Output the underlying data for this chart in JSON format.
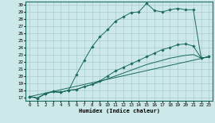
{
  "xlabel": "Humidex (Indice chaleur)",
  "bg_color": "#cce8e8",
  "line_color": "#1a6b5a",
  "grid_color": "#aacccc",
  "xlim": [
    -0.5,
    23.5
  ],
  "ylim": [
    16.5,
    30.5
  ],
  "yticks": [
    17,
    18,
    19,
    20,
    21,
    22,
    23,
    24,
    25,
    26,
    27,
    28,
    29,
    30
  ],
  "xticks": [
    0,
    1,
    2,
    3,
    4,
    5,
    6,
    7,
    8,
    9,
    10,
    11,
    12,
    13,
    14,
    15,
    16,
    17,
    18,
    19,
    20,
    21,
    22,
    23
  ],
  "series_marked1_x": [
    0,
    1,
    2,
    3,
    4,
    5,
    6,
    7,
    8,
    9,
    10,
    11,
    12,
    13,
    14,
    15,
    16,
    17,
    18,
    19,
    20,
    21,
    22,
    23
  ],
  "series_marked1_y": [
    17.1,
    16.9,
    17.5,
    17.8,
    17.7,
    18.0,
    20.2,
    22.2,
    24.1,
    25.5,
    26.5,
    27.7,
    28.3,
    28.9,
    29.0,
    30.2,
    29.2,
    29.0,
    29.3,
    29.5,
    29.3,
    29.3,
    22.5,
    22.7
  ],
  "series_marked2_x": [
    0,
    1,
    2,
    3,
    4,
    5,
    6,
    7,
    8,
    9,
    10,
    11,
    12,
    13,
    14,
    15,
    16,
    17,
    18,
    19,
    20,
    21,
    22,
    23
  ],
  "series_marked2_y": [
    17.1,
    16.9,
    17.5,
    17.8,
    17.7,
    18.0,
    18.1,
    18.5,
    18.8,
    19.3,
    20.0,
    20.7,
    21.2,
    21.7,
    22.2,
    22.7,
    23.2,
    23.7,
    24.0,
    24.4,
    24.5,
    24.2,
    22.5,
    22.7
  ],
  "series_line3_x": [
    0,
    1,
    2,
    3,
    4,
    5,
    6,
    7,
    8,
    9,
    10,
    11,
    12,
    13,
    14,
    15,
    16,
    17,
    18,
    19,
    20,
    21,
    22,
    23
  ],
  "series_line3_y": [
    17.1,
    16.9,
    17.5,
    17.8,
    17.7,
    18.0,
    18.1,
    18.5,
    18.8,
    19.2,
    19.6,
    20.0,
    20.4,
    20.8,
    21.2,
    21.6,
    21.9,
    22.2,
    22.5,
    22.7,
    22.9,
    23.0,
    22.5,
    22.7
  ],
  "series_line4_x": [
    0,
    23
  ],
  "series_line4_y": [
    17.1,
    22.7
  ]
}
